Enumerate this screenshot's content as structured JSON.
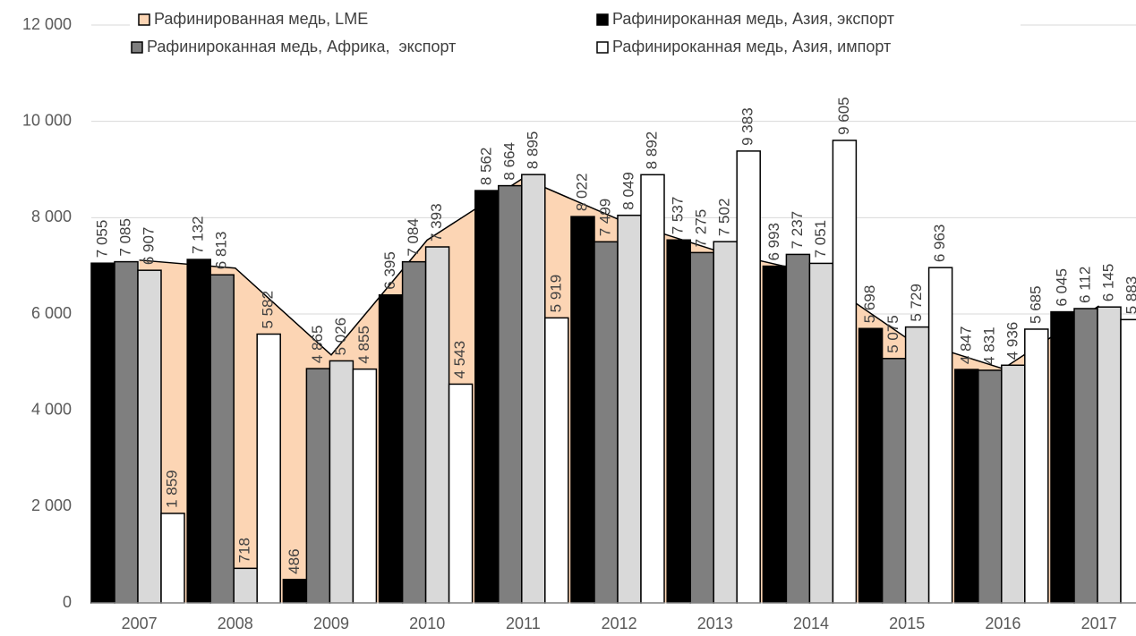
{
  "chart_data": {
    "type": "bar",
    "categories": [
      "2007",
      "2008",
      "2009",
      "2010",
      "2011",
      "2012",
      "2013",
      "2014",
      "2015",
      "2016",
      "2017"
    ],
    "series": [
      {
        "name": "Рафинированная медь, LME",
        "type": "area",
        "color": "#fcd5b4",
        "values": [
          7118,
          6952,
          5150,
          7535,
          8821,
          7958,
          7322,
          6862,
          5494,
          4863,
          6166
        ]
      },
      {
        "name": "Рафинироканная медь, Азия, экспорт",
        "color": "#000000",
        "values": [
          7055,
          7132,
          486,
          6395,
          8562,
          8022,
          7537,
          6993,
          5698,
          4847,
          6045
        ],
        "value_labels": [
          "7 055",
          "7 132",
          "486",
          "6 395",
          "8 562",
          "8 022",
          "7 537",
          "6 993",
          "5 698",
          "4 847",
          "6 045"
        ]
      },
      {
        "name": "Рафинироканная медь, Африка,  экспорт",
        "color": "#7f7f7f",
        "values": [
          7085,
          6813,
          4865,
          7084,
          8664,
          7499,
          7275,
          7237,
          5075,
          4831,
          6112
        ],
        "value_labels": [
          "7 085",
          "6 813",
          "4 865",
          "7 084",
          "8 664",
          "7 499",
          "7 275",
          "7 237",
          "5 075",
          "4 831",
          "6 112"
        ]
      },
      {
        "color": "#d9d9d9",
        "values": [
          6907,
          718,
          5026,
          7393,
          8895,
          8049,
          7502,
          7051,
          5729,
          4936,
          6145
        ],
        "value_labels": [
          "6 907",
          "718",
          "5 026",
          "7 393",
          "8 895",
          "8 049",
          "7 502",
          "7 051",
          "5 729",
          "4 936",
          "6 145"
        ]
      },
      {
        "name": "Рафинироканная медь, Азия, импорт",
        "color": "#ffffff",
        "values": [
          1859,
          5582,
          4855,
          4543,
          5919,
          8892,
          9383,
          9605,
          6963,
          5685,
          5883
        ],
        "value_labels": [
          "1 859",
          "5 582",
          "4 855",
          "4 543",
          "5 919",
          "8 892",
          "9 383",
          "9 605",
          "6 963",
          "5 685",
          "5 883"
        ]
      }
    ],
    "ylim": [
      0,
      12000
    ],
    "yticks": [
      0,
      {
        "value": 2000,
        "label": "2 000"
      },
      {
        "value": 4000,
        "label": "4 000"
      },
      {
        "value": 6000,
        "label": "6 000"
      },
      {
        "value": 8000,
        "label": "8 000"
      },
      {
        "value": 10000,
        "label": "10 000"
      },
      {
        "value": 12000,
        "label": "12 000"
      }
    ],
    "grid": true
  }
}
